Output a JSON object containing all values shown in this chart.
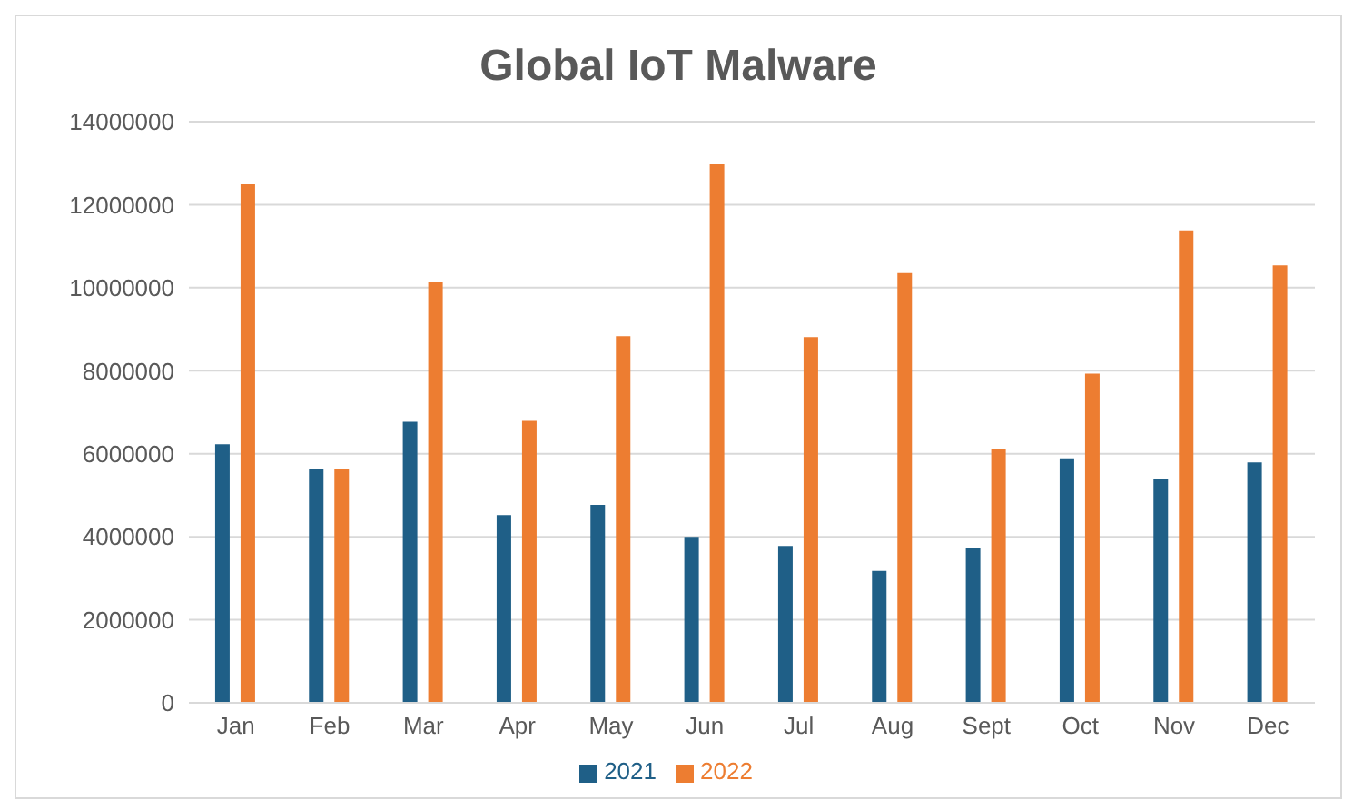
{
  "chart_data": {
    "type": "bar",
    "title": "Global IoT Malware",
    "categories": [
      "Jan",
      "Feb",
      "Mar",
      "Apr",
      "May",
      "Jun",
      "Jul",
      "Aug",
      "Sept",
      "Oct",
      "Nov",
      "Dec"
    ],
    "series": [
      {
        "name": "2021",
        "color": "#1f5f87",
        "values": [
          6230000,
          5630000,
          6770000,
          4520000,
          4770000,
          4000000,
          3780000,
          3180000,
          3730000,
          5890000,
          5390000,
          5790000
        ]
      },
      {
        "name": "2022",
        "color": "#ed7d31",
        "values": [
          12490000,
          5630000,
          10150000,
          6790000,
          8830000,
          12970000,
          8810000,
          10350000,
          6110000,
          7930000,
          11380000,
          10540000
        ]
      }
    ],
    "ylim": [
      0,
      14000000
    ],
    "yticks": [
      0,
      2000000,
      4000000,
      6000000,
      8000000,
      10000000,
      12000000,
      14000000
    ],
    "grid": "y",
    "legend": "bottom"
  }
}
